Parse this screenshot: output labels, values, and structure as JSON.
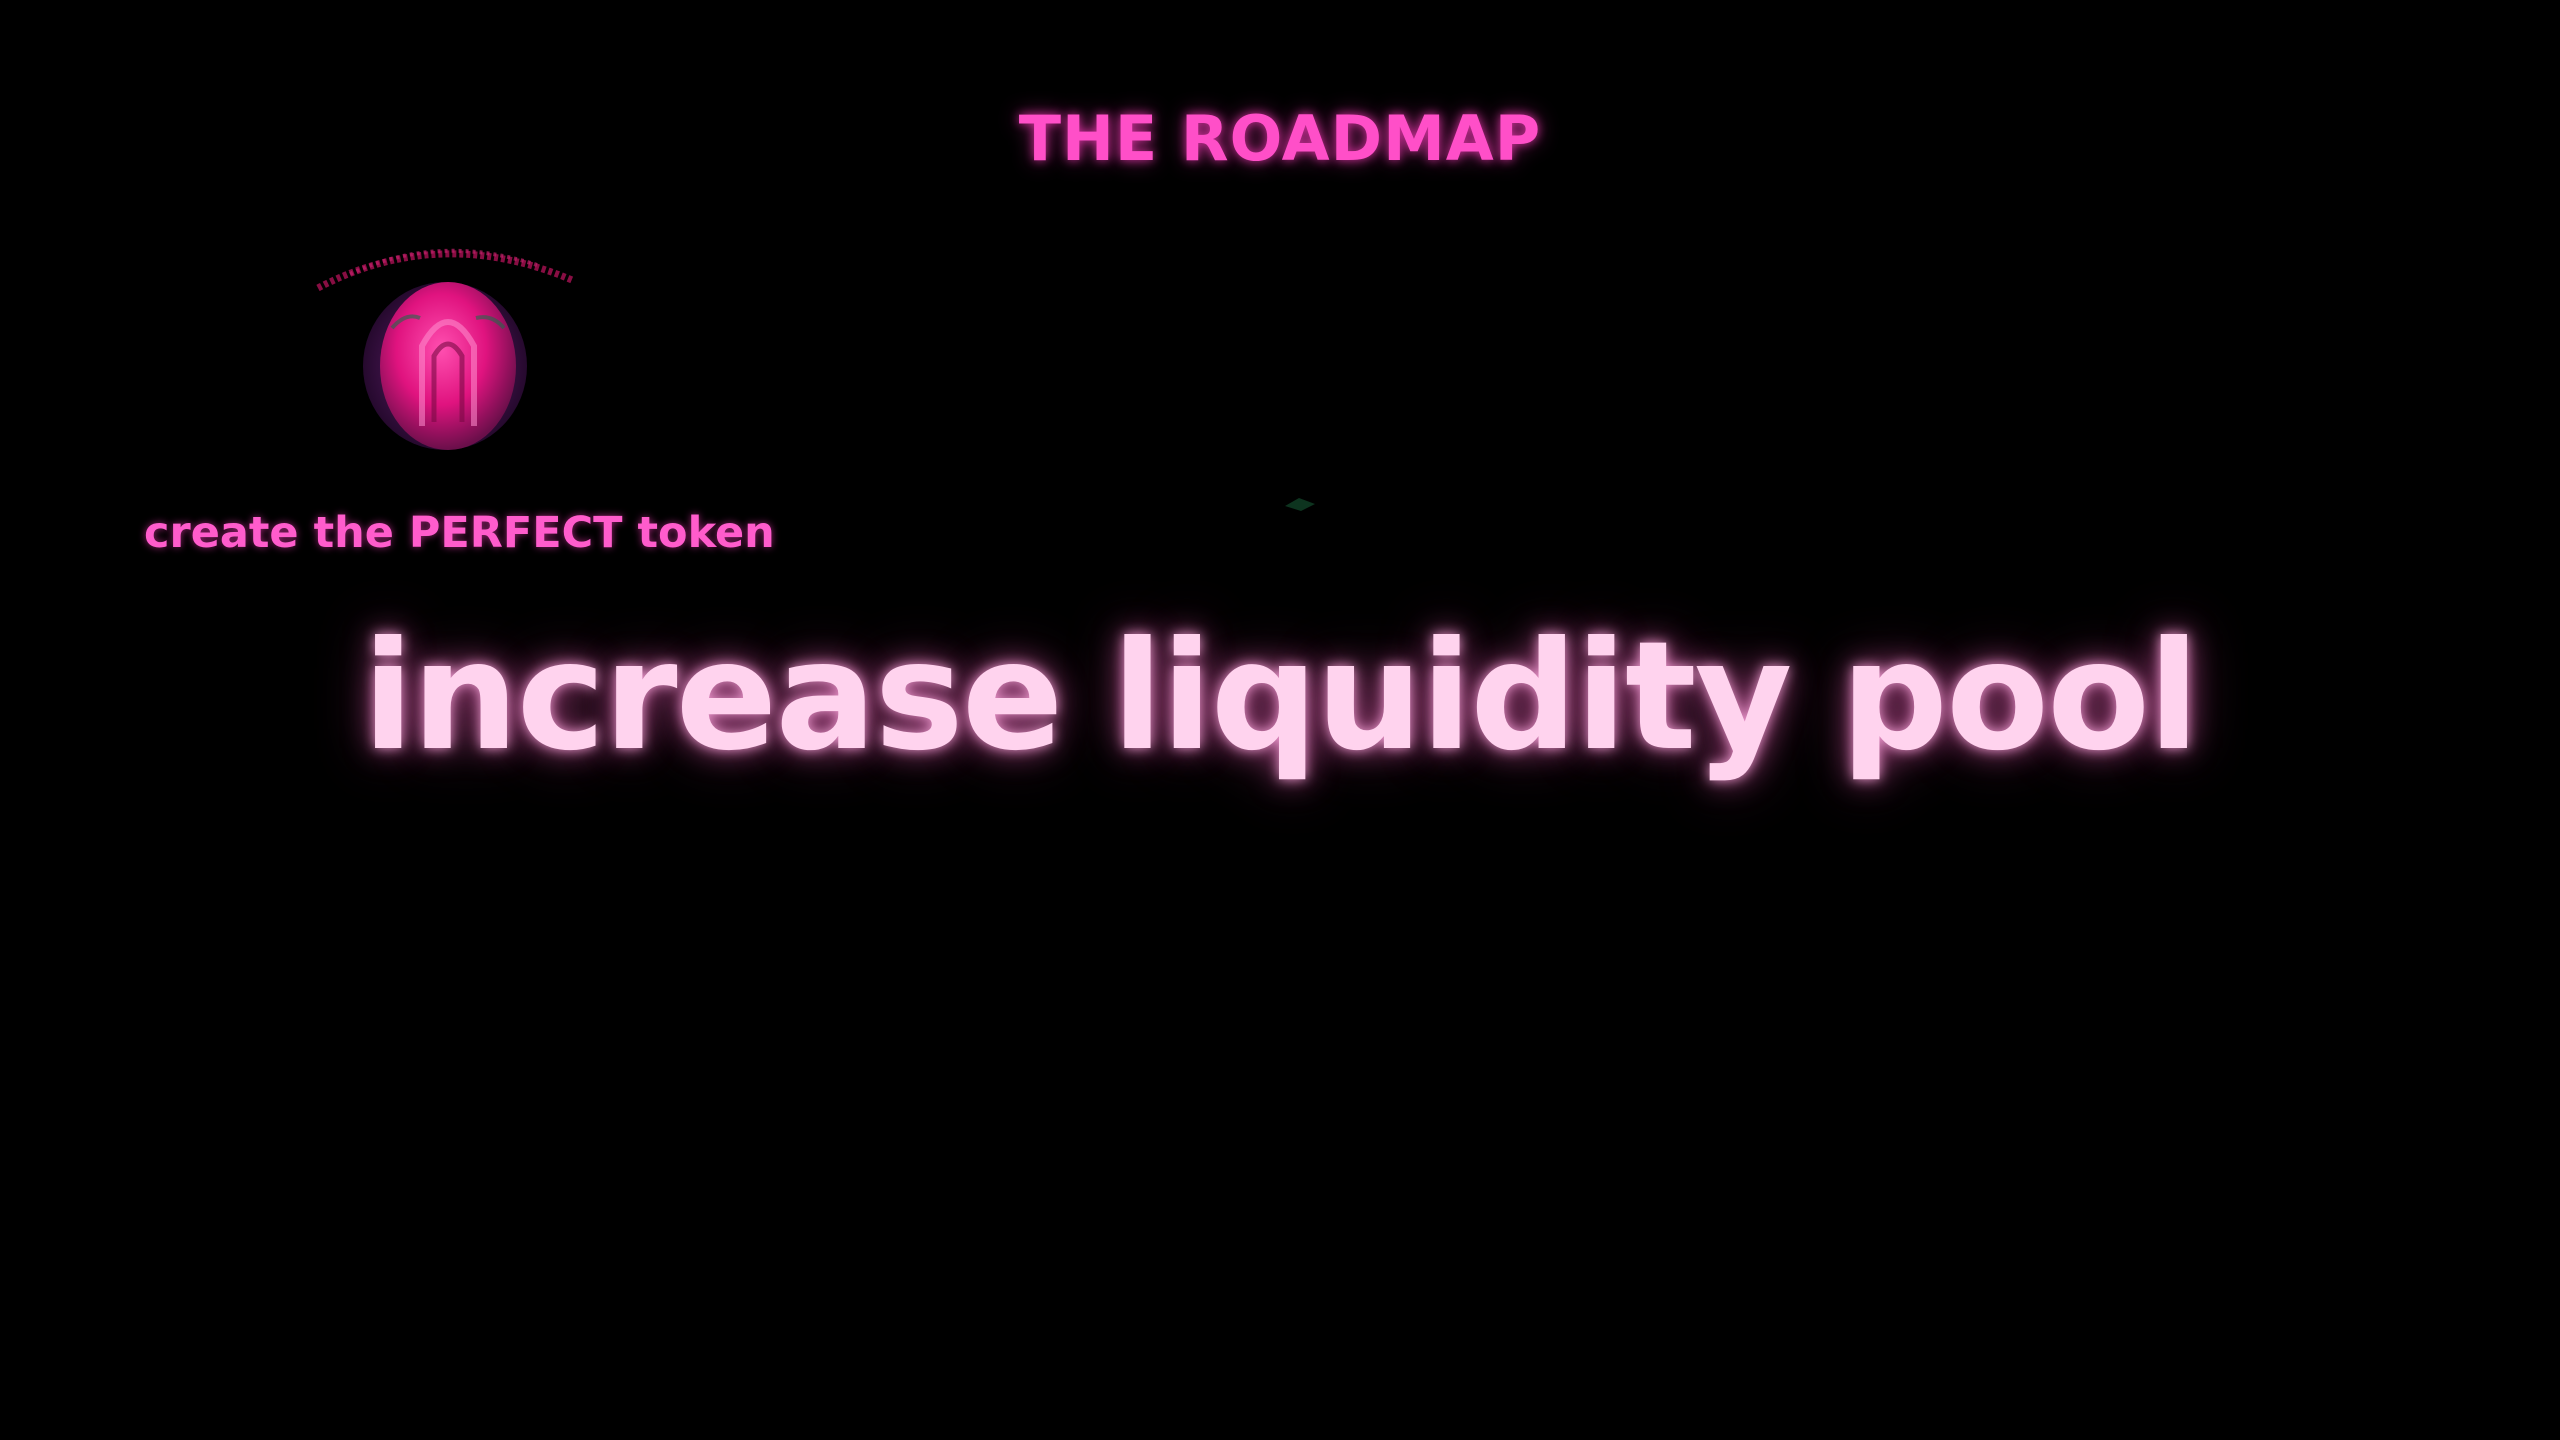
{
  "slide": {
    "title": "THE ROADMAP",
    "subtitle": "create the PERFECT token",
    "headline": "increase liquidity pool"
  },
  "colors": {
    "background": "#000000",
    "title": "#ff4fc8",
    "subtitle": "#ff5ccc",
    "headline": "#ffd3ee",
    "logo_magenta": "#e0137f",
    "logo_purple": "#5a1a6e"
  },
  "logo": {
    "icon": "pink-globe-logo"
  }
}
